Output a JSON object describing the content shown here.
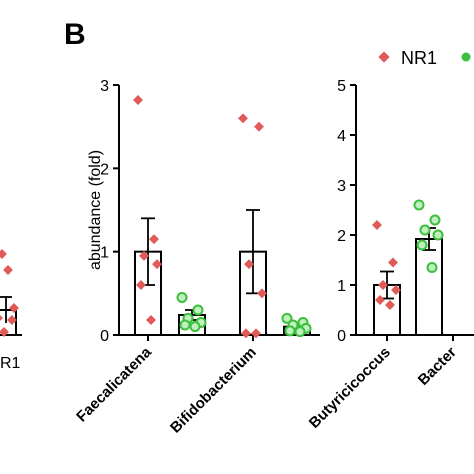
{
  "panel_label": "B",
  "legend": [
    {
      "label": "NR1",
      "marker": "diamond",
      "color": "#e05a57"
    },
    {
      "label": "",
      "marker": "circle",
      "color": "#3cbf3c"
    }
  ],
  "left_fragment": {
    "tick_label": "R1"
  },
  "chart_data": [
    {
      "type": "bar",
      "ylabel": "abundance (fold)",
      "ylim": [
        0,
        3
      ],
      "yticks": [
        "0",
        "1",
        "2",
        "3"
      ],
      "categories": [
        "Faecalicatena",
        "Bifidobacterium"
      ],
      "series": [
        {
          "name": "NR1",
          "means": [
            1.0,
            1.0
          ],
          "sem": [
            0.4,
            0.5
          ],
          "points": [
            [
              2.82,
              1.15,
              0.95,
              0.85,
              0.6,
              0.18
            ],
            [
              2.6,
              2.5,
              0.85,
              0.5,
              0.02,
              0.02
            ]
          ]
        },
        {
          "name": "",
          "means": [
            0.24,
            0.1
          ],
          "sem": [
            0.06,
            0.04
          ],
          "points": [
            [
              0.45,
              0.3,
              0.2,
              0.15,
              0.12,
              0.1
            ],
            [
              0.2,
              0.15,
              0.12,
              0.08,
              0.05,
              0.04
            ]
          ]
        }
      ]
    },
    {
      "type": "bar",
      "ylabel": "",
      "ylim": [
        0,
        5
      ],
      "yticks": [
        "0",
        "1",
        "2",
        "3",
        "4",
        "5"
      ],
      "categories": [
        "Butyricicoccus",
        "Bacter"
      ],
      "series": [
        {
          "name": "NR1",
          "means": [
            1.0
          ],
          "sem": [
            0.27
          ],
          "points": [
            [
              2.2,
              1.45,
              1.0,
              0.9,
              0.7,
              0.6
            ]
          ]
        },
        {
          "name": "",
          "means": [
            1.92
          ],
          "sem": [
            0.22
          ],
          "points": [
            [
              2.6,
              2.3,
              2.1,
              2.0,
              1.8,
              1.35
            ]
          ]
        }
      ]
    }
  ]
}
